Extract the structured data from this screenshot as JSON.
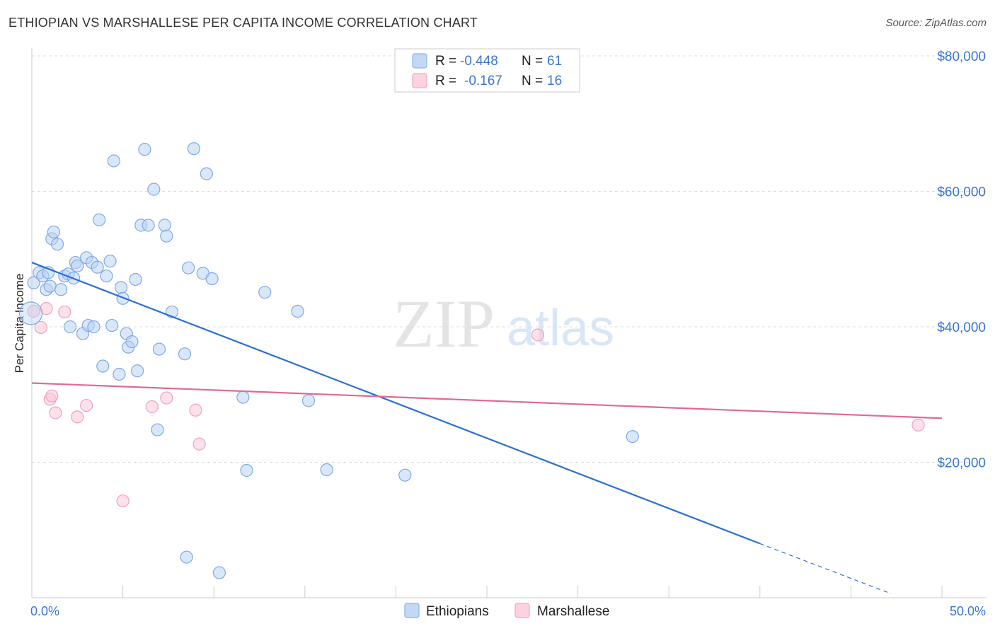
{
  "header": {
    "title": "ETHIOPIAN VS MARSHALLESE PER CAPITA INCOME CORRELATION CHART",
    "source": "Source: ZipAtlas.com"
  },
  "watermark": {
    "zip": "ZIP",
    "atlas": "atlas"
  },
  "colors": {
    "ethiopians": "#8ab4e8",
    "ethiopians_line": "#2a6fd6",
    "marshallese": "#f3a7bf",
    "marshallese_line": "#e06a93",
    "label_blue": "#3b76d0",
    "grid": "#dddddd"
  },
  "legend": {
    "rows": [
      {
        "r_label": "R =",
        "r_value": "-0.448",
        "n_label": "N =",
        "n_value": "61"
      },
      {
        "r_label": "R =",
        "r_value": "-0.167",
        "n_label": "N =",
        "n_value": "16"
      }
    ]
  },
  "bottom_legend": {
    "series1": "Ethiopians",
    "series2": "Marshallese"
  },
  "chart_data": {
    "type": "scatter",
    "title": "ETHIOPIAN VS MARSHALLESE PER CAPITA INCOME CORRELATION CHART",
    "xlabel": "",
    "ylabel": "Per Capita Income",
    "xlim": [
      0,
      50
    ],
    "ylim": [
      0,
      80000
    ],
    "x_tick_labels": [
      "0.0%",
      "50.0%"
    ],
    "y_ticks": [
      20000,
      40000,
      60000,
      80000
    ],
    "y_tick_labels": [
      "$20,000",
      "$40,000",
      "$60,000",
      "$80,000"
    ],
    "series": [
      {
        "name": "Ethiopians",
        "r": -0.448,
        "n": 61,
        "trend": {
          "x0": 0.0,
          "y0": 49500,
          "x1": 40.0,
          "y1": 8000,
          "dash_to_x": 47.2,
          "dash_to_y": 600
        },
        "points": [
          [
            0.1,
            46500
          ],
          [
            0.4,
            48000
          ],
          [
            0.6,
            47500
          ],
          [
            0.8,
            45500
          ],
          [
            0.9,
            48000
          ],
          [
            1.0,
            46000
          ],
          [
            1.1,
            53000
          ],
          [
            1.2,
            54000
          ],
          [
            1.4,
            52200
          ],
          [
            1.6,
            45500
          ],
          [
            1.8,
            47500
          ],
          [
            2.0,
            47800
          ],
          [
            2.1,
            40000
          ],
          [
            2.3,
            47200
          ],
          [
            2.4,
            49500
          ],
          [
            2.5,
            49000
          ],
          [
            2.8,
            39000
          ],
          [
            3.0,
            50200
          ],
          [
            3.1,
            40200
          ],
          [
            3.3,
            49500
          ],
          [
            3.4,
            40000
          ],
          [
            3.6,
            48800
          ],
          [
            3.7,
            55800
          ],
          [
            3.9,
            34200
          ],
          [
            4.1,
            47500
          ],
          [
            4.3,
            49700
          ],
          [
            4.4,
            40200
          ],
          [
            4.5,
            64500
          ],
          [
            4.8,
            33000
          ],
          [
            4.9,
            45800
          ],
          [
            5.0,
            44200
          ],
          [
            5.2,
            39000
          ],
          [
            5.3,
            37000
          ],
          [
            5.5,
            37800
          ],
          [
            5.7,
            47000
          ],
          [
            5.8,
            33500
          ],
          [
            6.0,
            55000
          ],
          [
            6.2,
            66200
          ],
          [
            6.4,
            55000
          ],
          [
            6.7,
            60300
          ],
          [
            6.9,
            24800
          ],
          [
            7.0,
            36700
          ],
          [
            7.3,
            55000
          ],
          [
            7.4,
            53400
          ],
          [
            7.7,
            42200
          ],
          [
            8.4,
            36000
          ],
          [
            8.5,
            6000
          ],
          [
            8.6,
            48700
          ],
          [
            8.9,
            66300
          ],
          [
            9.4,
            47900
          ],
          [
            9.6,
            62600
          ],
          [
            9.9,
            47100
          ],
          [
            10.3,
            3700
          ],
          [
            11.6,
            29600
          ],
          [
            11.8,
            18800
          ],
          [
            12.8,
            45100
          ],
          [
            14.6,
            42300
          ],
          [
            15.2,
            29100
          ],
          [
            16.2,
            18900
          ],
          [
            20.5,
            18100
          ],
          [
            33.0,
            23800
          ]
        ]
      },
      {
        "name": "Marshallese",
        "r": -0.167,
        "n": 16,
        "trend": {
          "x0": 0.0,
          "y0": 31700,
          "x1": 50.0,
          "y1": 26500
        },
        "points": [
          [
            0.1,
            42300
          ],
          [
            0.5,
            39900
          ],
          [
            0.8,
            42700
          ],
          [
            1.0,
            29300
          ],
          [
            1.1,
            29800
          ],
          [
            1.3,
            27300
          ],
          [
            1.8,
            42200
          ],
          [
            2.5,
            26700
          ],
          [
            3.0,
            28400
          ],
          [
            5.0,
            14300
          ],
          [
            6.6,
            28200
          ],
          [
            7.4,
            29500
          ],
          [
            9.0,
            27700
          ],
          [
            9.2,
            22700
          ],
          [
            27.8,
            38800
          ],
          [
            48.7,
            25500
          ]
        ]
      }
    ]
  }
}
